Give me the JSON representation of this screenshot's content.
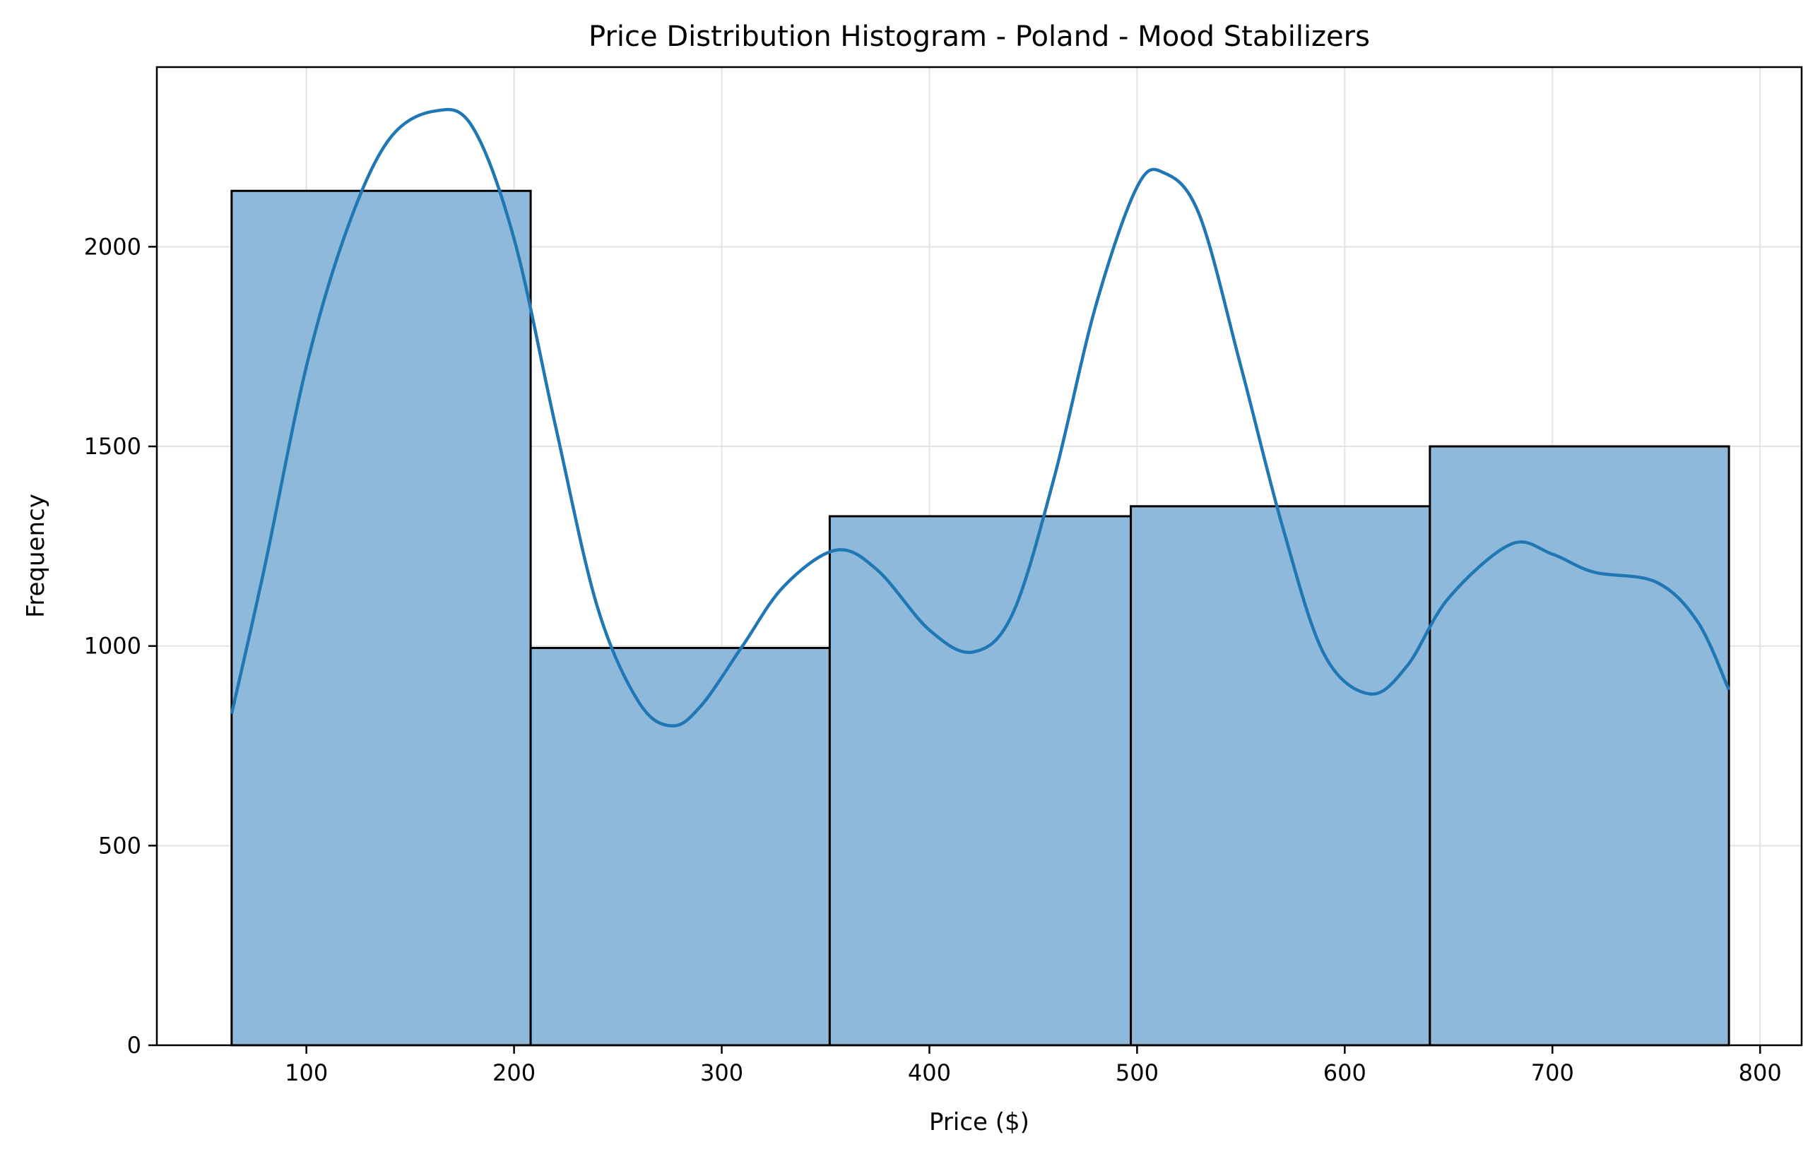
{
  "chart_data": {
    "type": "bar",
    "title": "Price Distribution Histogram - Poland - Mood Stabilizers",
    "xlabel": "Price ($)",
    "ylabel": "Frequency",
    "xlim": [
      28,
      820
    ],
    "ylim": [
      0,
      2450
    ],
    "xticks": [
      100,
      200,
      300,
      400,
      500,
      600,
      700,
      800
    ],
    "yticks": [
      0,
      500,
      1000,
      1500,
      2000
    ],
    "grid": true,
    "bins": [
      {
        "x0": 64,
        "x1": 208,
        "value": 2140
      },
      {
        "x0": 208,
        "x1": 352,
        "value": 995
      },
      {
        "x0": 352,
        "x1": 497,
        "value": 1325
      },
      {
        "x0": 497,
        "x1": 641,
        "value": 1350
      },
      {
        "x0": 641,
        "x1": 785,
        "value": 1500
      }
    ],
    "kde": {
      "x": [
        64,
        80,
        100,
        120,
        140,
        162,
        180,
        200,
        220,
        240,
        260,
        276,
        290,
        310,
        330,
        355,
        375,
        400,
        421,
        440,
        460,
        480,
        500,
        513,
        530,
        550,
        570,
        590,
        612,
        630,
        650,
        680,
        700,
        720,
        750,
        770,
        785
      ],
      "y": [
        830,
        1200,
        1700,
        2050,
        2270,
        2340,
        2300,
        2020,
        1550,
        1100,
        860,
        800,
        850,
        1000,
        1150,
        1240,
        1190,
        1040,
        985,
        1080,
        1420,
        1850,
        2150,
        2185,
        2080,
        1700,
        1300,
        980,
        880,
        950,
        1120,
        1255,
        1230,
        1185,
        1160,
        1060,
        890
      ]
    },
    "colors": {
      "bar_fill": "#8eb9da",
      "bar_edge": "#000000",
      "kde_line": "#1f77b4",
      "grid": "#e3e3e3"
    }
  }
}
